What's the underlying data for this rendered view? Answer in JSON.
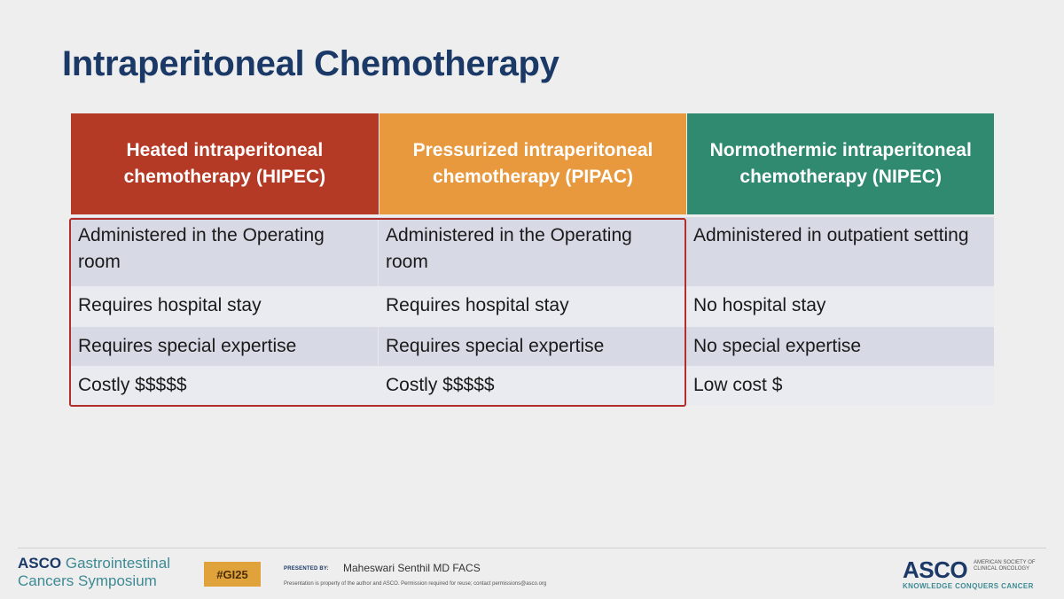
{
  "title": "Intraperitoneal Chemotherapy",
  "table": {
    "headers": [
      "Heated intraperitoneal chemotherapy (HIPEC)",
      "Pressurized intraperitoneal chemotherapy (PIPAC)",
      "Normothermic intraperitoneal chemotherapy (NIPEC)"
    ],
    "rows": [
      [
        "Administered in the Operating room",
        "Administered  in the Operating room",
        "Administered in outpatient setting"
      ],
      [
        "Requires hospital stay",
        "Requires hospital stay",
        "No hospital stay"
      ],
      [
        "Requires special expertise",
        "Requires special expertise",
        "No special expertise"
      ],
      [
        "Costly $$$$$",
        "Costly $$$$$",
        "Low cost $"
      ]
    ],
    "header_colors": [
      "#b53a26",
      "#e8983d",
      "#2f8a6f"
    ]
  },
  "footer": {
    "symposium_brand": "ASCO",
    "symposium_name_line1": "Gastrointestinal",
    "symposium_name_line2": "Cancers Symposium",
    "hashtag": "#GI25",
    "presented_by": "PRESENTED BY:",
    "presenter": "Maheswari Senthil MD FACS",
    "disclaimer": "Presentation is property of the author and ASCO. Permission required for reuse; contact permissions@asco.org",
    "org_logo": "ASCO",
    "org_name": "AMERICAN SOCIETY OF CLINICAL ONCOLOGY",
    "tagline": "KNOWLEDGE CONQUERS CANCER"
  }
}
